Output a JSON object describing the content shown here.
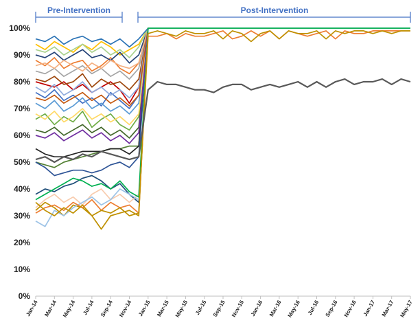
{
  "chart_data": {
    "type": "line",
    "title": "",
    "xlabel": "",
    "ylabel": "",
    "ylim": [
      0,
      100
    ],
    "grid": false,
    "legend": "none",
    "y_ticks": [
      "0%",
      "10%",
      "20%",
      "30%",
      "40%",
      "50%",
      "60%",
      "70%",
      "80%",
      "90%",
      "100%"
    ],
    "x_labels": [
      "Jan-14",
      "Mar-14",
      "May-14",
      "Jul-14",
      "Sep-14",
      "Nov-14",
      "Jan-15",
      "Mar-15",
      "May-15",
      "Jul-15",
      "Sep-15",
      "Nov-15",
      "Jan-16",
      "Mar-16",
      "May-16",
      "Jul-16",
      "Sep-16",
      "Nov-16",
      "Jan-17",
      "Mar-17",
      "May-17"
    ],
    "annotations": [
      {
        "label": "Pre-Intervention",
        "from": "Jan-14",
        "to": "Nov-14"
      },
      {
        "label": "Post-Intervention",
        "from": "Jan-15",
        "to": "May-17"
      }
    ],
    "series": [
      {
        "color": "#c00000",
        "values": [
          80,
          79,
          78,
          80,
          77,
          79,
          76,
          78,
          80,
          77,
          72,
          78,
          100,
          100,
          100,
          100,
          100,
          100,
          100,
          100,
          100,
          100,
          100,
          100,
          100,
          100,
          100,
          100,
          100,
          100,
          100,
          100,
          100,
          100,
          100,
          100,
          100,
          100,
          100,
          100,
          100
        ]
      },
      {
        "color": "#4472c4",
        "values": [
          76,
          74,
          77,
          73,
          75,
          72,
          74,
          71,
          76,
          73,
          70,
          75,
          100,
          100,
          100,
          100,
          100,
          100,
          100,
          100,
          100,
          100,
          100,
          100,
          100,
          100,
          100,
          100,
          100,
          100,
          100,
          100,
          100,
          100,
          100,
          100,
          100,
          100,
          100,
          100,
          100
        ]
      },
      {
        "color": "#ed7d31",
        "values": [
          88,
          86,
          89,
          85,
          87,
          88,
          84,
          86,
          89,
          85,
          83,
          87,
          100,
          100,
          100,
          100,
          100,
          100,
          100,
          100,
          100,
          100,
          100,
          100,
          100,
          100,
          100,
          100,
          100,
          100,
          100,
          100,
          100,
          100,
          100,
          100,
          100,
          100,
          100,
          100,
          100
        ]
      },
      {
        "color": "#70ad47",
        "values": [
          66,
          68,
          64,
          67,
          65,
          69,
          63,
          66,
          68,
          64,
          62,
          67,
          100,
          100,
          100,
          100,
          100,
          100,
          100,
          100,
          100,
          100,
          100,
          100,
          100,
          100,
          100,
          100,
          100,
          100,
          100,
          100,
          100,
          100,
          100,
          100,
          100,
          100,
          100,
          100,
          100
        ]
      },
      {
        "color": "#ffc000",
        "values": [
          94,
          92,
          95,
          93,
          91,
          94,
          92,
          95,
          93,
          90,
          92,
          94,
          100,
          100,
          100,
          100,
          100,
          100,
          100,
          100,
          100,
          100,
          100,
          100,
          100,
          100,
          100,
          100,
          100,
          100,
          100,
          100,
          100,
          100,
          100,
          100,
          100,
          100,
          100,
          100,
          100
        ]
      },
      {
        "color": "#5b9bd5",
        "values": [
          72,
          70,
          73,
          69,
          71,
          74,
          70,
          72,
          69,
          71,
          68,
          72,
          100,
          100,
          100,
          100,
          100,
          100,
          100,
          100,
          100,
          100,
          100,
          100,
          100,
          100,
          100,
          100,
          100,
          100,
          100,
          100,
          100,
          100,
          100,
          100,
          100,
          100,
          100,
          100,
          100
        ]
      },
      {
        "color": "#a5a5a5",
        "values": [
          84,
          83,
          85,
          82,
          84,
          86,
          83,
          85,
          82,
          84,
          81,
          85,
          100,
          100,
          100,
          100,
          100,
          100,
          100,
          100,
          100,
          100,
          100,
          100,
          100,
          100,
          100,
          100,
          100,
          100,
          100,
          100,
          100,
          100,
          100,
          100,
          100,
          100,
          100,
          100,
          100
        ]
      },
      {
        "color": "#264478",
        "values": [
          90,
          89,
          91,
          88,
          90,
          92,
          89,
          90,
          88,
          91,
          87,
          90,
          100,
          100,
          100,
          100,
          100,
          100,
          100,
          100,
          100,
          100,
          100,
          100,
          100,
          100,
          100,
          100,
          100,
          100,
          100,
          100,
          100,
          100,
          100,
          100,
          100,
          100,
          100,
          100,
          100
        ]
      },
      {
        "color": "#9e480e",
        "values": [
          81,
          80,
          82,
          79,
          80,
          83,
          78,
          81,
          79,
          80,
          77,
          81,
          100,
          100,
          100,
          100,
          100,
          100,
          100,
          100,
          100,
          100,
          100,
          100,
          100,
          100,
          100,
          100,
          100,
          100,
          100,
          100,
          100,
          100,
          100,
          100,
          100,
          100,
          100,
          100,
          100
        ]
      },
      {
        "color": "#43682b",
        "values": [
          62,
          61,
          63,
          60,
          62,
          64,
          61,
          63,
          60,
          62,
          59,
          63,
          100,
          100,
          100,
          100,
          100,
          100,
          100,
          100,
          100,
          100,
          100,
          100,
          100,
          100,
          100,
          100,
          100,
          100,
          100,
          100,
          100,
          100,
          100,
          100,
          100,
          100,
          100,
          100,
          100
        ]
      },
      {
        "color": "#f4b183",
        "values": [
          86,
          87,
          85,
          88,
          86,
          84,
          87,
          85,
          88,
          86,
          85,
          87,
          100,
          100,
          100,
          100,
          100,
          100,
          100,
          100,
          100,
          100,
          100,
          100,
          100,
          100,
          100,
          100,
          100,
          100,
          100,
          100,
          100,
          100,
          100,
          100,
          100,
          100,
          100,
          100,
          100
        ]
      },
      {
        "color": "#a9d18e",
        "values": [
          92,
          91,
          93,
          90,
          92,
          94,
          91,
          93,
          90,
          92,
          89,
          93,
          100,
          100,
          100,
          100,
          100,
          100,
          100,
          100,
          100,
          100,
          100,
          100,
          100,
          100,
          100,
          100,
          100,
          100,
          100,
          100,
          100,
          100,
          100,
          100,
          100,
          100,
          100,
          100,
          100
        ]
      },
      {
        "color": "#8faadc",
        "values": [
          78,
          76,
          79,
          75,
          77,
          80,
          76,
          78,
          75,
          77,
          74,
          78,
          100,
          100,
          100,
          100,
          100,
          100,
          100,
          100,
          100,
          100,
          100,
          100,
          100,
          100,
          100,
          100,
          100,
          100,
          100,
          100,
          100,
          100,
          100,
          100,
          100,
          100,
          100,
          100,
          100
        ]
      },
      {
        "color": "#ffd966",
        "values": [
          68,
          66,
          69,
          65,
          67,
          70,
          66,
          68,
          65,
          67,
          64,
          68,
          100,
          100,
          100,
          100,
          100,
          100,
          100,
          100,
          100,
          100,
          100,
          100,
          100,
          100,
          100,
          100,
          100,
          100,
          100,
          100,
          100,
          100,
          100,
          100,
          100,
          100,
          100,
          100,
          100
        ]
      },
      {
        "color": "#2e75b6",
        "values": [
          96,
          95,
          97,
          94,
          96,
          97,
          95,
          96,
          94,
          96,
          93,
          96,
          100,
          100,
          100,
          100,
          100,
          100,
          100,
          100,
          100,
          100,
          100,
          100,
          100,
          100,
          100,
          100,
          100,
          100,
          100,
          100,
          100,
          100,
          100,
          100,
          100,
          100,
          100,
          100,
          100
        ]
      },
      {
        "color": "#c55a11",
        "values": [
          74,
          73,
          75,
          72,
          74,
          76,
          73,
          75,
          72,
          74,
          71,
          75,
          100,
          100,
          100,
          100,
          100,
          100,
          100,
          100,
          100,
          100,
          100,
          100,
          100,
          100,
          100,
          100,
          100,
          100,
          100,
          100,
          100,
          100,
          100,
          100,
          100,
          100,
          100,
          100,
          100
        ]
      },
      {
        "color": "#548235",
        "values": [
          50,
          49,
          48,
          50,
          51,
          52,
          53,
          54,
          55,
          55,
          56,
          56,
          100,
          100,
          100,
          100,
          100,
          100,
          100,
          100,
          100,
          100,
          100,
          100,
          100,
          100,
          100,
          100,
          100,
          100,
          100,
          100,
          100,
          100,
          100,
          100,
          100,
          100,
          100,
          100,
          100
        ]
      },
      {
        "color": "#262626",
        "values": [
          55,
          53,
          52,
          52,
          53,
          54,
          54,
          54,
          55,
          55,
          53,
          56,
          100,
          100,
          100,
          100,
          100,
          100,
          100,
          100,
          100,
          100,
          100,
          100,
          100,
          100,
          100,
          100,
          100,
          100,
          100,
          100,
          100,
          100,
          100,
          100,
          100,
          100,
          100,
          100,
          100
        ]
      },
      {
        "color": "#2f5597",
        "values": [
          50,
          48,
          45,
          46,
          47,
          47,
          46,
          47,
          49,
          50,
          48,
          52,
          100,
          100,
          100,
          100,
          100,
          100,
          100,
          100,
          100,
          100,
          100,
          100,
          100,
          100,
          100,
          100,
          100,
          100,
          100,
          100,
          100,
          100,
          100,
          100,
          100,
          100,
          100,
          100,
          100
        ]
      },
      {
        "color": "#7030a0",
        "values": [
          60,
          59,
          61,
          58,
          60,
          62,
          59,
          61,
          58,
          60,
          57,
          61,
          100,
          100,
          100,
          100,
          100,
          100,
          100,
          100,
          100,
          100,
          100,
          100,
          100,
          100,
          100,
          100,
          100,
          100,
          100,
          100,
          100,
          100,
          100,
          100,
          100,
          100,
          100,
          100,
          100
        ]
      },
      {
        "color": "#1f4e79",
        "values": [
          38,
          40,
          39,
          41,
          42,
          44,
          45,
          43,
          40,
          42,
          38,
          35,
          100,
          100,
          100,
          100,
          100,
          100,
          100,
          100,
          100,
          100,
          100,
          100,
          100,
          100,
          100,
          100,
          100,
          100,
          100,
          100,
          100,
          100,
          100,
          100,
          100,
          100,
          100,
          100,
          100
        ]
      },
      {
        "color": "#bf9000",
        "values": [
          32,
          35,
          33,
          30,
          34,
          33,
          30,
          25,
          30,
          31,
          32,
          30,
          100,
          100,
          100,
          100,
          100,
          100,
          100,
          100,
          100,
          100,
          100,
          100,
          100,
          100,
          100,
          100,
          100,
          100,
          100,
          100,
          100,
          100,
          100,
          100,
          100,
          100,
          100,
          100,
          100
        ]
      },
      {
        "color": "#f8cbad",
        "values": [
          33,
          36,
          38,
          35,
          37,
          34,
          38,
          40,
          36,
          38,
          35,
          38,
          100,
          100,
          100,
          100,
          100,
          100,
          100,
          100,
          100,
          100,
          100,
          100,
          100,
          100,
          100,
          100,
          100,
          100,
          100,
          100,
          100,
          100,
          100,
          100,
          100,
          100,
          100,
          100,
          100
        ]
      },
      {
        "color": "#9dc3e6",
        "values": [
          28,
          26,
          32,
          30,
          33,
          35,
          37,
          34,
          36,
          40,
          38,
          36,
          100,
          100,
          100,
          100,
          100,
          100,
          100,
          100,
          100,
          100,
          100,
          100,
          100,
          100,
          100,
          100,
          100,
          100,
          100,
          100,
          100,
          100,
          100,
          100,
          100,
          100,
          100,
          100,
          100
        ]
      },
      {
        "color": "#00b050",
        "values": [
          36,
          38,
          40,
          42,
          44,
          43,
          41,
          42,
          40,
          43,
          39,
          37,
          100,
          100,
          100,
          100,
          100,
          100,
          100,
          100,
          100,
          100,
          100,
          100,
          100,
          100,
          100,
          100,
          100,
          100,
          100,
          100,
          100,
          100,
          100,
          100,
          100,
          100,
          100,
          100,
          100
        ]
      },
      {
        "color": "#ed7d31",
        "values": [
          31,
          33,
          34,
          32,
          35,
          33,
          36,
          32,
          35,
          33,
          34,
          31,
          97,
          97,
          98,
          96,
          98,
          97,
          97,
          98,
          99,
          96,
          97,
          99,
          97,
          99,
          96,
          99,
          98,
          97,
          98,
          99,
          96,
          99,
          98,
          98,
          99,
          99,
          99,
          99,
          99
        ]
      },
      {
        "color": "#bf9000",
        "values": [
          35,
          32,
          30,
          33,
          31,
          34,
          30,
          32,
          31,
          33,
          30,
          31,
          98,
          99,
          98,
          97,
          99,
          98,
          98,
          99,
          96,
          99,
          98,
          95,
          98,
          99,
          96,
          99,
          98,
          98,
          99,
          96,
          99,
          98,
          99,
          99,
          98,
          99,
          98,
          99,
          99
        ]
      },
      {
        "color": "#595959",
        "values": [
          51,
          52,
          50,
          52,
          51,
          53,
          52,
          54,
          53,
          52,
          51,
          52,
          77,
          80,
          79,
          79,
          78,
          77,
          77,
          76,
          78,
          79,
          79,
          77,
          78,
          79,
          78,
          79,
          80,
          78,
          80,
          78,
          80,
          81,
          79,
          80,
          80,
          81,
          79,
          81,
          80
        ]
      }
    ]
  }
}
